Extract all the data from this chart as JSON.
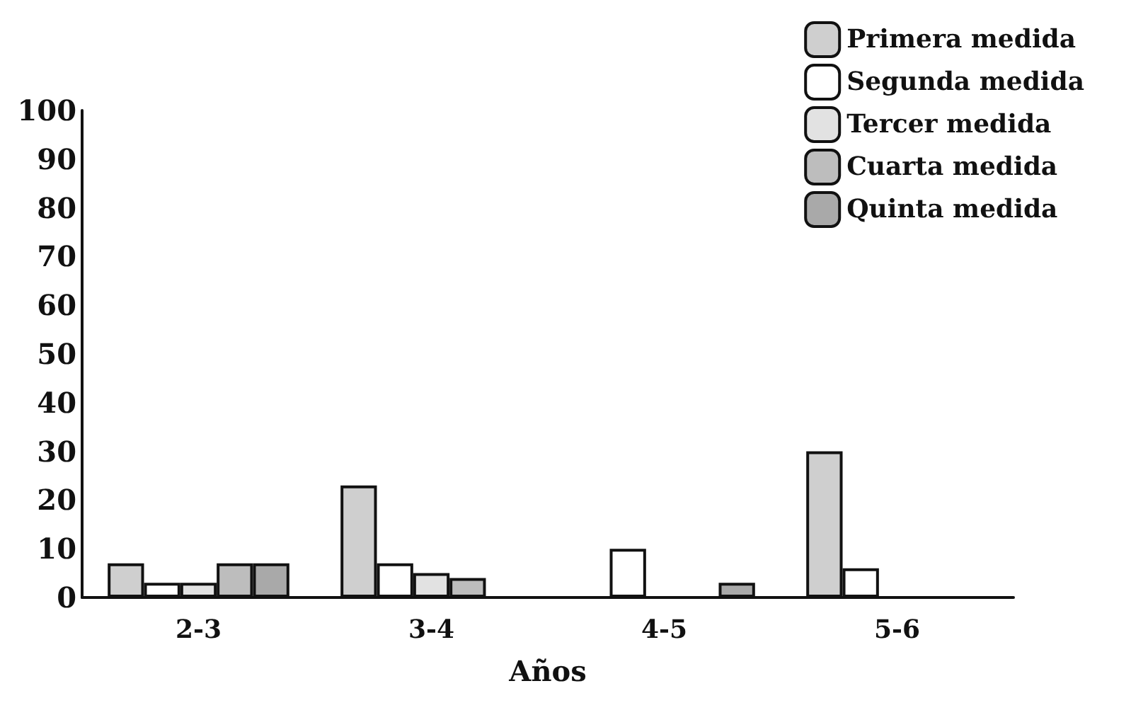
{
  "chart_data": {
    "type": "bar",
    "xlabel": "Años",
    "categories": [
      "2-3",
      "3-4",
      "4-5",
      "5-6"
    ],
    "series": [
      {
        "name": "Primera medida",
        "color": "#cfcfcf",
        "values": [
          7,
          23,
          null,
          30
        ]
      },
      {
        "name": "Segunda medida",
        "color": "#ffffff",
        "values": [
          3,
          7,
          10,
          6
        ]
      },
      {
        "name": "Tercer medida",
        "color": "#e2e2e2",
        "values": [
          3,
          5,
          null,
          null
        ]
      },
      {
        "name": "Cuarta medida",
        "color": "#bdbdbd",
        "values": [
          7,
          4,
          null,
          null
        ]
      },
      {
        "name": "Quinta medida",
        "color": "#a9a9a9",
        "values": [
          7,
          null,
          3,
          null
        ]
      }
    ],
    "ylim": [
      0,
      100
    ],
    "yticks": [
      0,
      10,
      20,
      30,
      40,
      50,
      60,
      70,
      80,
      90,
      100
    ],
    "grid": false,
    "legend": "top right"
  }
}
